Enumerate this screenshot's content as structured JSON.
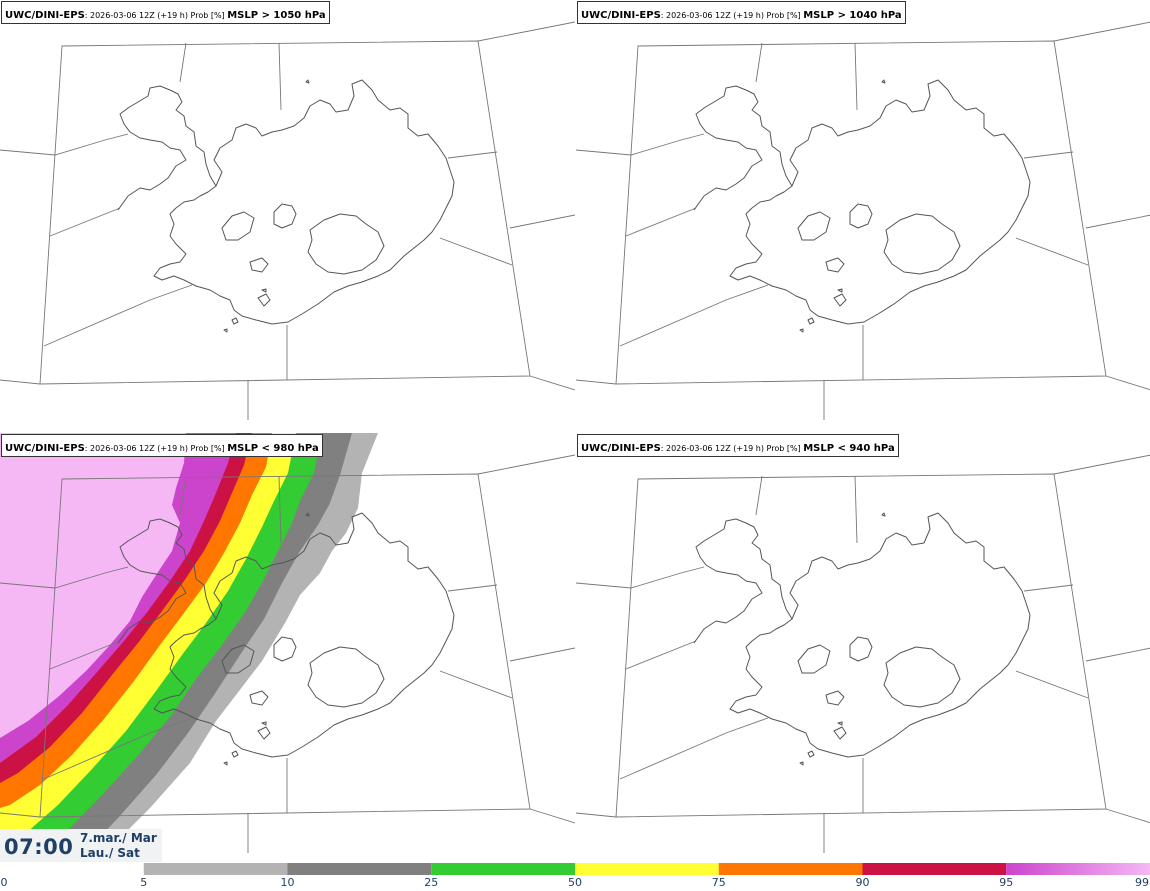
{
  "panels": [
    {
      "model": "UWC/DINI-EPS",
      "meta": ": 2026-03-06 12Z (+19 h) Prob [%] ",
      "variable": "MSLP > 1050 hPa"
    },
    {
      "model": "UWC/DINI-EPS",
      "meta": ": 2026-03-06 12Z (+19 h) Prob [%] ",
      "variable": "MSLP > 1040 hPa"
    },
    {
      "model": "UWC/DINI-EPS",
      "meta": ": 2026-03-06 12Z (+19 h) Prob [%] ",
      "variable": "MSLP < 980 hPa"
    },
    {
      "model": "UWC/DINI-EPS",
      "meta": ": 2026-03-06 12Z (+19 h) Prob [%] ",
      "variable": "MSLP < 940 hPa"
    }
  ],
  "timestamp": {
    "time": "07:00",
    "date_line1": "7.mar./ Mar",
    "date_line2": "Lau./ Sat"
  },
  "colorbar": {
    "ticks": [
      "0",
      "5",
      "10",
      "25",
      "50",
      "75",
      "90",
      "95",
      "99"
    ],
    "bins": [
      {
        "from": 0,
        "to": 5,
        "color": "#ffffff"
      },
      {
        "from": 5,
        "to": 10,
        "color": "#b3b3b3"
      },
      {
        "from": 10,
        "to": 25,
        "color": "#808080"
      },
      {
        "from": 25,
        "to": 50,
        "color": "#33cc33"
      },
      {
        "from": 50,
        "to": 75,
        "color": "#ffff33"
      },
      {
        "from": 75,
        "to": 90,
        "color": "#ff7700"
      },
      {
        "from": 90,
        "to": 95,
        "color": "#cc1144"
      },
      {
        "from": 95,
        "to": 99,
        "color": "#cc44cc"
      },
      {
        "from": 99,
        "to": 100,
        "color": "#f5b8f5"
      }
    ]
  }
}
